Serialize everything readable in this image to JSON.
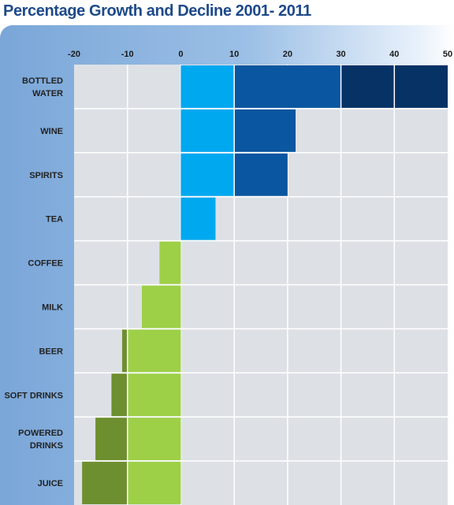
{
  "title": "Percentage Growth and Decline 2001- 2011",
  "colors": {
    "grid_bg": "#dde1e6",
    "grid_line": "#ffffff",
    "growth_0_10": "#00a8f0",
    "growth_10_30": "#0a56a0",
    "growth_30_50": "#063266",
    "decline_0_10": "#9dd047",
    "decline_10_20": "#6e8f2f"
  },
  "chart_data": {
    "type": "bar",
    "orientation": "horizontal",
    "title": "Percentage Growth and Decline 2001- 2011",
    "xlim": [
      -20,
      50
    ],
    "x_ticks": [
      -20,
      -10,
      0,
      10,
      20,
      30,
      40,
      50
    ],
    "x_tick_labels": [
      "-20",
      "-10",
      "0",
      "10",
      "20",
      "30",
      "40",
      "50"
    ],
    "grid": true,
    "categories": [
      [
        "BOTTLED",
        "WATER"
      ],
      [
        "WINE"
      ],
      [
        "SPIRITS"
      ],
      [
        "TEA"
      ],
      [
        "COFFEE"
      ],
      [
        "MILK"
      ],
      [
        "BEER"
      ],
      [
        "SOFT DRINKS"
      ],
      [
        "POWERED",
        "DRINKS"
      ],
      [
        "JUICE"
      ]
    ],
    "values": [
      50,
      21.5,
      20,
      6.5,
      -4,
      -7.3,
      -11,
      -13,
      -16,
      -18.5
    ]
  }
}
